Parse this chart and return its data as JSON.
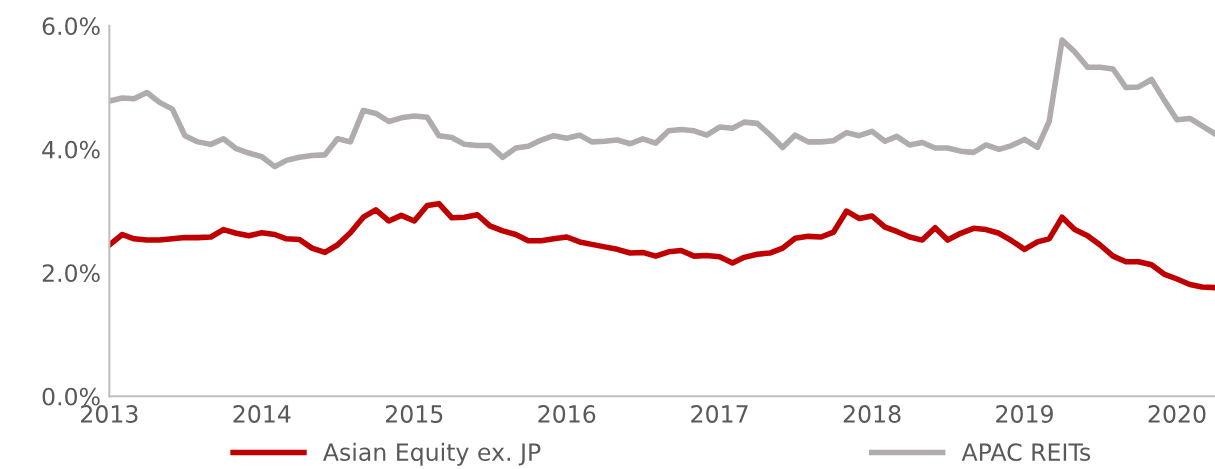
{
  "chart_data": {
    "type": "line",
    "x": [
      "2013-01",
      "2013-02",
      "2013-03",
      "2013-04",
      "2013-05",
      "2013-06",
      "2013-07",
      "2013-08",
      "2013-09",
      "2013-10",
      "2013-11",
      "2013-12",
      "2014-01",
      "2014-02",
      "2014-03",
      "2014-04",
      "2014-05",
      "2014-06",
      "2014-07",
      "2014-08",
      "2014-09",
      "2014-10",
      "2014-11",
      "2014-12",
      "2015-01",
      "2015-02",
      "2015-03",
      "2015-04",
      "2015-05",
      "2015-06",
      "2015-07",
      "2015-08",
      "2015-09",
      "2015-10",
      "2015-11",
      "2015-12",
      "2016-01",
      "2016-02",
      "2016-03",
      "2016-04",
      "2016-05",
      "2016-06",
      "2016-07",
      "2016-08",
      "2016-09",
      "2016-10",
      "2016-11",
      "2016-12",
      "2017-01",
      "2017-02",
      "2017-03",
      "2017-04",
      "2017-05",
      "2017-06",
      "2017-07",
      "2017-08",
      "2017-09",
      "2017-10",
      "2017-11",
      "2017-12",
      "2018-01",
      "2018-02",
      "2018-03",
      "2018-04",
      "2018-05",
      "2018-06",
      "2018-07",
      "2018-08",
      "2018-09",
      "2018-10",
      "2018-11",
      "2018-12",
      "2019-01",
      "2019-02",
      "2019-03",
      "2019-04",
      "2019-05",
      "2019-06",
      "2019-07",
      "2019-08",
      "2019-09",
      "2019-10",
      "2019-11",
      "2019-12",
      "2020-01",
      "2020-02",
      "2020-03",
      "2020-04"
    ],
    "series": [
      {
        "name": "Asian Equity ex. JP",
        "color": "#c00000",
        "values": [
          2.45,
          2.62,
          2.55,
          2.53,
          2.53,
          2.55,
          2.57,
          2.57,
          2.58,
          2.7,
          2.64,
          2.6,
          2.65,
          2.62,
          2.55,
          2.54,
          2.4,
          2.33,
          2.45,
          2.65,
          2.9,
          3.02,
          2.84,
          2.93,
          2.84,
          3.09,
          3.12,
          2.89,
          2.9,
          2.94,
          2.76,
          2.68,
          2.62,
          2.52,
          2.52,
          2.55,
          2.58,
          2.5,
          2.46,
          2.42,
          2.38,
          2.32,
          2.33,
          2.27,
          2.34,
          2.36,
          2.27,
          2.28,
          2.26,
          2.16,
          2.25,
          2.3,
          2.32,
          2.4,
          2.56,
          2.59,
          2.58,
          2.66,
          3.0,
          2.88,
          2.92,
          2.74,
          2.67,
          2.58,
          2.53,
          2.73,
          2.53,
          2.64,
          2.72,
          2.7,
          2.64,
          2.52,
          2.38,
          2.5,
          2.55,
          2.9,
          2.7,
          2.6,
          2.45,
          2.27,
          2.18,
          2.18,
          2.13,
          1.98,
          1.9,
          1.81,
          1.77,
          1.76
        ]
      },
      {
        "name": "APAC REITs",
        "color": "#b0acac",
        "values": [
          4.78,
          4.83,
          4.82,
          4.92,
          4.76,
          4.65,
          4.22,
          4.12,
          4.08,
          4.17,
          4.01,
          3.94,
          3.88,
          3.72,
          3.82,
          3.87,
          3.9,
          3.91,
          4.17,
          4.12,
          4.63,
          4.58,
          4.45,
          4.51,
          4.54,
          4.52,
          4.22,
          4.19,
          4.08,
          4.06,
          4.06,
          3.87,
          4.02,
          4.05,
          4.15,
          4.22,
          4.18,
          4.23,
          4.12,
          4.13,
          4.15,
          4.09,
          4.17,
          4.1,
          4.3,
          4.32,
          4.3,
          4.23,
          4.36,
          4.34,
          4.44,
          4.42,
          4.24,
          4.03,
          4.23,
          4.12,
          4.12,
          4.14,
          4.27,
          4.22,
          4.29,
          4.13,
          4.21,
          4.07,
          4.11,
          4.02,
          4.02,
          3.97,
          3.95,
          4.07,
          4.0,
          4.06,
          4.16,
          4.03,
          4.45,
          5.77,
          5.58,
          5.33,
          5.33,
          5.3,
          5.0,
          5.01,
          5.13,
          4.8,
          4.48,
          4.5,
          4.38,
          4.25
        ]
      }
    ],
    "xlim": [
      "2013-01",
      "2020-04"
    ],
    "xticks": [
      {
        "value": "2013-01",
        "label": "2013"
      },
      {
        "value": "2014-01",
        "label": "2014"
      },
      {
        "value": "2015-01",
        "label": "2015"
      },
      {
        "value": "2016-01",
        "label": "2016"
      },
      {
        "value": "2017-01",
        "label": "2017"
      },
      {
        "value": "2018-01",
        "label": "2018"
      },
      {
        "value": "2019-01",
        "label": "2019"
      },
      {
        "value": "2020-01",
        "label": "2020"
      }
    ],
    "ylim": [
      0,
      6
    ],
    "yticks": [
      {
        "value": 0,
        "label": "0.0%"
      },
      {
        "value": 2,
        "label": "2.0%"
      },
      {
        "value": 4,
        "label": "4.0%"
      },
      {
        "value": 6,
        "label": "6.0%"
      }
    ],
    "grid": false,
    "legend": "bottom",
    "marker": "none",
    "line_style": "solid"
  }
}
